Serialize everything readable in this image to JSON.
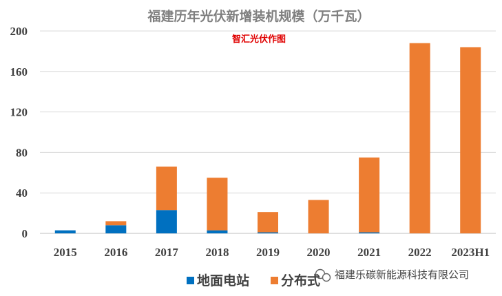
{
  "chart_data": {
    "type": "bar",
    "stacked": true,
    "title": "福建历年光伏新增装机规模（万千瓦）",
    "subtitle": "智汇光伏作图",
    "categories": [
      "2015",
      "2016",
      "2017",
      "2018",
      "2019",
      "2020",
      "2021",
      "2022",
      "2023H1"
    ],
    "series": [
      {
        "name": "地面电站",
        "color": "#0070c0",
        "values": [
          3,
          8,
          23,
          3,
          1,
          0,
          1,
          0,
          0
        ]
      },
      {
        "name": "分布式",
        "color": "#ed7d31",
        "values": [
          0,
          4,
          43,
          52,
          20,
          33,
          74,
          188,
          184
        ]
      }
    ],
    "yticks": [
      "0",
      "40",
      "80",
      "120",
      "160",
      "200"
    ],
    "ylim": [
      0,
      200
    ],
    "grid": true,
    "legend_position": "bottom"
  },
  "watermark": {
    "text": "福建乐碳新能源科技有限公司",
    "icon": "wechat-icon"
  }
}
